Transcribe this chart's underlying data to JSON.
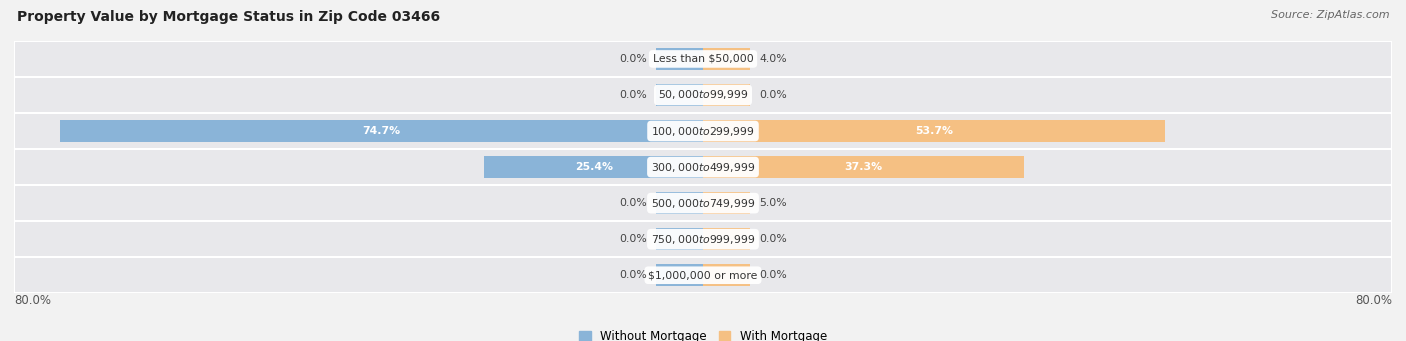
{
  "title": "Property Value by Mortgage Status in Zip Code 03466",
  "source": "Source: ZipAtlas.com",
  "categories": [
    "Less than $50,000",
    "$50,000 to $99,999",
    "$100,000 to $299,999",
    "$300,000 to $499,999",
    "$500,000 to $749,999",
    "$750,000 to $999,999",
    "$1,000,000 or more"
  ],
  "without_mortgage": [
    0.0,
    0.0,
    74.7,
    25.4,
    0.0,
    0.0,
    0.0
  ],
  "with_mortgage": [
    4.0,
    0.0,
    53.7,
    37.3,
    5.0,
    0.0,
    0.0
  ],
  "color_without": "#8ab4d8",
  "color_with": "#f5c083",
  "xlim": 80.0,
  "stub_size": 5.5,
  "legend_without": "Without Mortgage",
  "legend_with": "With Mortgage",
  "bg_row_color": "#e8e8eb",
  "bg_fig_color": "#f2f2f2",
  "title_fontsize": 10,
  "source_fontsize": 8,
  "bar_height": 0.62
}
